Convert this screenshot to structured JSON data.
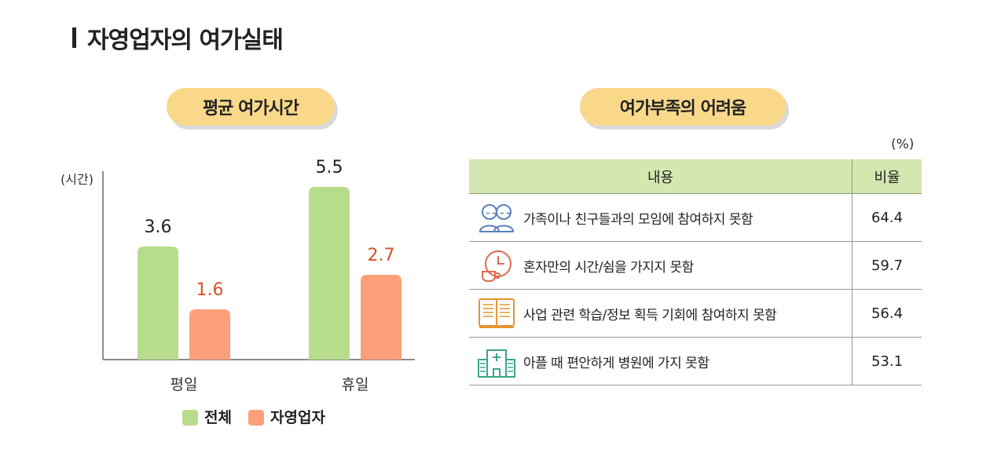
{
  "page": {
    "title": "자영업자의 여가실태"
  },
  "left_panel": {
    "header": "평균 여가시간"
  },
  "right_panel": {
    "header": "여가부족의 어려움",
    "unit": "(%)",
    "columns": [
      "내용",
      "비율"
    ],
    "rows": [
      {
        "icon": "people-icon",
        "label": "가족이나 친구들과의 모임에 참여하지 못함",
        "value": "64.4"
      },
      {
        "icon": "clock-cup-icon",
        "label": "혼자만의 시간/쉼을 가지지 못함",
        "value": "59.7"
      },
      {
        "icon": "book-icon",
        "label": "사업 관련 학습/정보 획득 기회에 참여하지 못함",
        "value": "56.4"
      },
      {
        "icon": "hospital-icon",
        "label": "아플 때 편안하게 병원에 가지 못함",
        "value": "53.1"
      }
    ]
  },
  "chart_data": {
    "type": "bar",
    "ylabel": "(시간)",
    "categories": [
      "평일",
      "휴일"
    ],
    "ylim": [
      0,
      6
    ],
    "series": [
      {
        "name": "전체",
        "color": "#b7dc8b",
        "values": [
          3.6,
          5.5
        ],
        "label_color": "#222222"
      },
      {
        "name": "자영업자",
        "color": "#fd9f7b",
        "values": [
          1.6,
          2.7
        ],
        "label_color": "#d9502b"
      }
    ],
    "legend_position": "bottom",
    "grid": false
  }
}
